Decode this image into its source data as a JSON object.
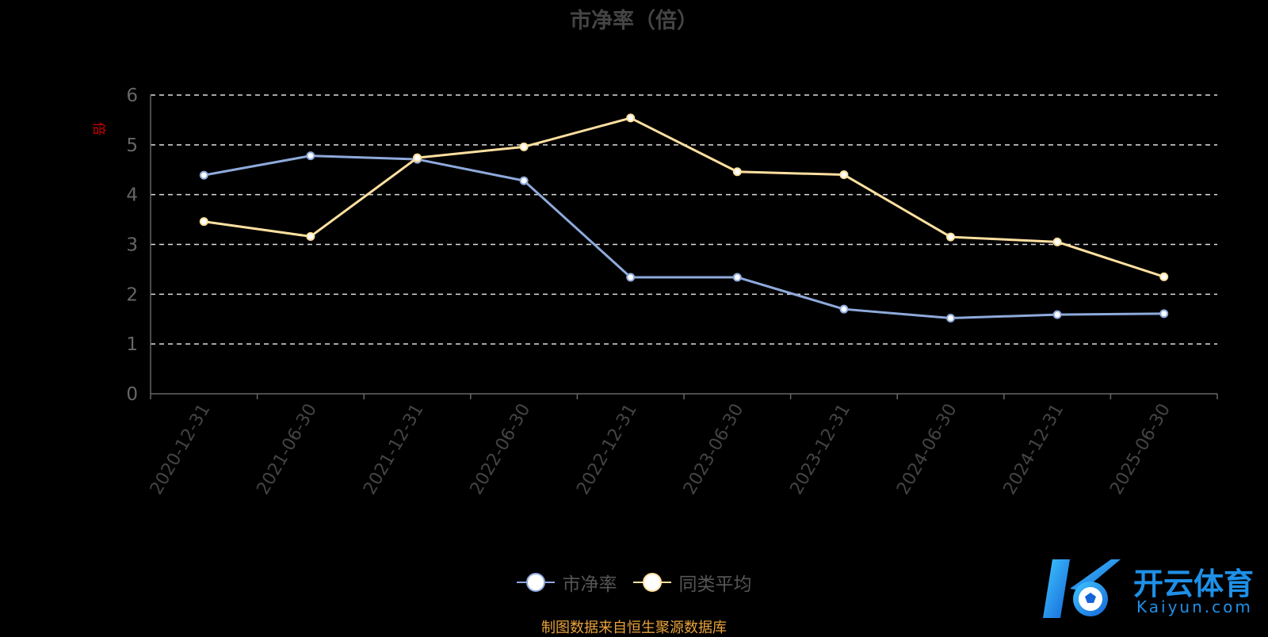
{
  "chart_data": {
    "type": "line",
    "title": "市净率（倍）",
    "y_unit": "倍",
    "categories": [
      "2020-12-31",
      "2021-06-30",
      "2021-12-31",
      "2022-06-30",
      "2022-12-31",
      "2023-06-30",
      "2023-12-31",
      "2024-06-30",
      "2024-12-31",
      "2025-06-30"
    ],
    "y_ticks": [
      0,
      1,
      2,
      3,
      4,
      5,
      6
    ],
    "ylim": [
      0,
      6
    ],
    "grid": true,
    "legend_position": "bottom",
    "series": [
      {
        "name": "市净率",
        "color": "#8eaadb",
        "values": [
          4.39,
          4.78,
          4.71,
          4.28,
          2.34,
          2.34,
          1.7,
          1.52,
          1.59,
          1.61
        ]
      },
      {
        "name": "同类平均",
        "color": "#ffe0a0",
        "values": [
          3.46,
          3.16,
          4.74,
          4.96,
          5.54,
          4.46,
          4.4,
          3.15,
          3.05,
          2.35
        ]
      }
    ]
  },
  "source_note": "制图数据来自恒生聚源数据库",
  "watermark": {
    "brand_text": "开云体育",
    "brand_sub": "Kaiyun.com",
    "brand_color": "#1e90e8"
  }
}
